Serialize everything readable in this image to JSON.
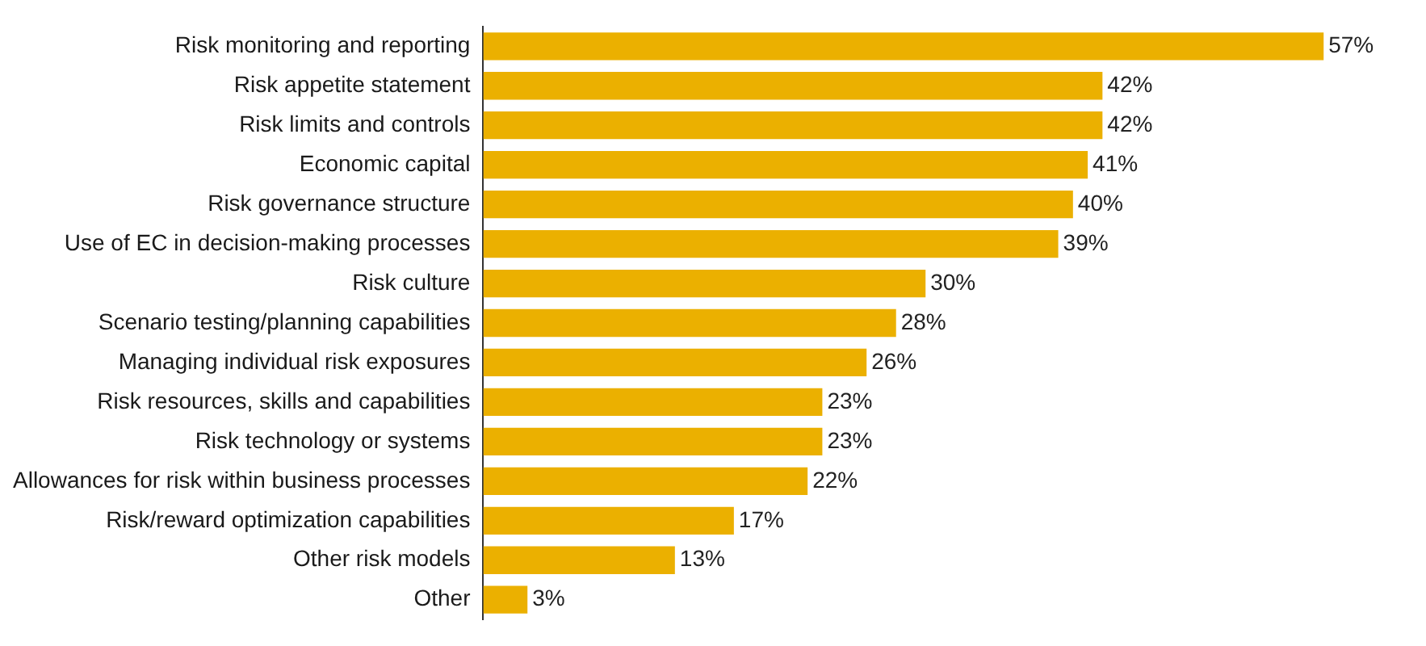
{
  "chart_data": {
    "type": "bar",
    "orientation": "horizontal",
    "categories": [
      "Risk monitoring and reporting",
      "Risk appetite statement",
      "Risk limits and controls",
      "Economic capital",
      "Risk governance structure",
      "Use of EC in decision-making processes",
      "Risk culture",
      "Scenario testing/planning capabilities",
      "Managing individual risk exposures",
      "Risk resources, skills and capabilities",
      "Risk technology or systems",
      "Allowances for risk within business processes",
      "Risk/reward optimization capabilities",
      "Other risk models",
      "Other"
    ],
    "values": [
      57,
      42,
      42,
      41,
      40,
      39,
      30,
      28,
      26,
      23,
      23,
      22,
      17,
      13,
      3
    ],
    "value_labels": [
      "57%",
      "42%",
      "42%",
      "41%",
      "40%",
      "39%",
      "30%",
      "28%",
      "26%",
      "23%",
      "23%",
      "22%",
      "17%",
      "13%",
      "3%"
    ],
    "color": "#ebb000",
    "legend": false
  }
}
